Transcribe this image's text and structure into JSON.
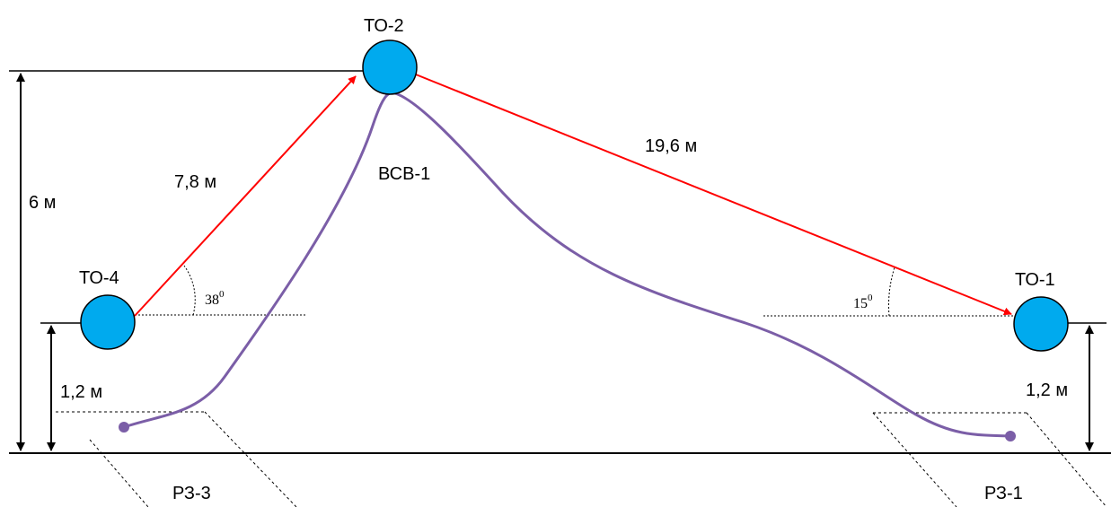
{
  "nodes": {
    "to2": {
      "label": "ТО-2"
    },
    "to4": {
      "label": "ТО-4"
    },
    "to1": {
      "label": "ТО-1"
    }
  },
  "cable": {
    "label": "ВСВ-1"
  },
  "distances": {
    "to4_to2": "7,8 м",
    "to2_to1": "19,6 м"
  },
  "heights": {
    "total": "6 м",
    "left": "1,2 м",
    "right": "1,2 м"
  },
  "angles": {
    "left": {
      "value": "38",
      "unit": "0"
    },
    "right": {
      "value": "15",
      "unit": "0"
    }
  },
  "zones": {
    "left": "РЗ-3",
    "right": "РЗ-1"
  },
  "colors": {
    "node_fill": "#00aaee",
    "arrow": "#ff0000",
    "cable": "#7b5ea7",
    "line": "#000000"
  }
}
